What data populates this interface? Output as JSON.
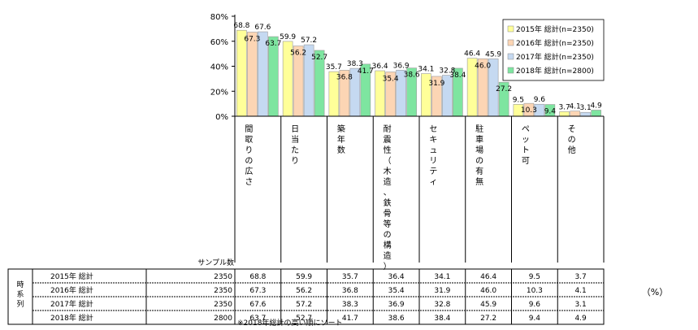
{
  "chart_data": {
    "type": "bar",
    "categories": [
      "間取りの広さ",
      "日当たり",
      "築年数",
      "耐震性（木造、鉄骨等の構造）",
      "セキュリティ",
      "駐車場の有無",
      "ペット可",
      "その他"
    ],
    "series": [
      {
        "name": "2015年 総計(n=2350)",
        "row_label": "2015年 総計",
        "sample": "2350",
        "color": "#ffff99",
        "values": [
          68.8,
          59.9,
          35.7,
          36.4,
          34.1,
          46.4,
          9.5,
          3.7
        ]
      },
      {
        "name": "2016年 総計(n=2350)",
        "row_label": "2016年 総計",
        "sample": "2350",
        "color": "#fcd5b4",
        "values": [
          67.3,
          56.2,
          36.8,
          35.4,
          31.9,
          46.0,
          10.3,
          4.1
        ]
      },
      {
        "name": "2017年 総計(n=2350)",
        "row_label": "2017年 総計",
        "sample": "2350",
        "color": "#c5d9f1",
        "values": [
          67.6,
          57.2,
          38.3,
          36.9,
          32.8,
          45.9,
          9.6,
          3.1
        ]
      },
      {
        "name": "2018年 総計(n=2800)",
        "row_label": "2018年 総計",
        "sample": "2800",
        "color": "#7ee5a0",
        "values": [
          63.7,
          52.7,
          41.7,
          38.6,
          38.4,
          27.2,
          9.4,
          4.9
        ]
      }
    ],
    "yticks": [
      "0%",
      "20%",
      "40%",
      "60%",
      "80%"
    ],
    "ylim": [
      0,
      80
    ],
    "legend": "top-right",
    "grid": false,
    "table": {
      "group_label": "時系列",
      "sample_header": "サンプル数",
      "unit": "（%）",
      "footnote": "※2018年総計の高い順にソート"
    }
  }
}
